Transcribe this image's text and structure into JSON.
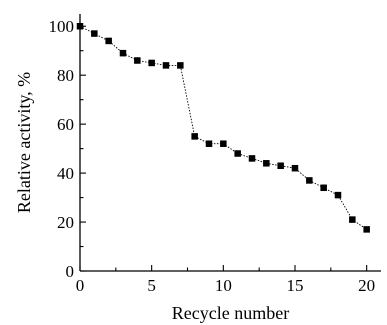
{
  "chart_data": {
    "type": "line",
    "title": "",
    "xlabel": "Recycle number",
    "ylabel": "Relative activity, %",
    "xlim": [
      0,
      21
    ],
    "ylim": [
      0,
      105
    ],
    "xticks": [
      0,
      5,
      10,
      15,
      20
    ],
    "yticks": [
      0,
      20,
      40,
      60,
      80,
      100
    ],
    "x_minor_ticks": [
      2.5,
      7.5,
      12.5,
      17.5
    ],
    "y_minor_ticks": [
      10,
      30,
      50,
      70,
      90
    ],
    "grid": false,
    "series": [
      {
        "marker": "square",
        "line_style": "dotted",
        "color": "#000000",
        "x": [
          0,
          1,
          2,
          3,
          4,
          5,
          6,
          7,
          8,
          9,
          10,
          11,
          12,
          13,
          14,
          15,
          16,
          17,
          18,
          19,
          20
        ],
        "y": [
          100,
          97,
          94,
          89,
          86,
          85,
          84,
          84,
          55,
          52,
          52,
          48,
          46,
          44,
          43,
          42,
          37,
          34,
          31,
          21,
          17
        ]
      }
    ]
  }
}
